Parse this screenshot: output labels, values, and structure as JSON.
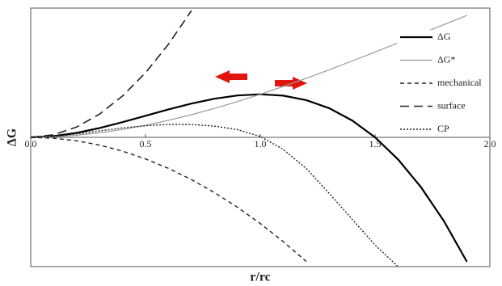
{
  "chart_data": {
    "type": "line",
    "xlabel": "r/rc",
    "ylabel": "ΔG",
    "x": [
      0,
      0.1,
      0.2,
      0.3,
      0.4,
      0.5,
      0.6,
      0.7,
      0.8,
      0.9,
      1.0,
      1.1,
      1.2,
      1.3,
      1.4,
      1.5,
      1.6,
      1.7,
      1.8,
      1.9,
      2.0
    ],
    "xlim": [
      0,
      2
    ],
    "ylim": [
      -3,
      3
    ],
    "xticks": [
      {
        "value": 0,
        "label": "0.0"
      },
      0.5,
      {
        "value": 1,
        "label": "1.0"
      },
      1.5,
      {
        "value": 2,
        "label": "2.0"
      }
    ],
    "legend": "top-right",
    "series": [
      {
        "name": "ΔG",
        "color": "#000000",
        "width": 2.2,
        "dash": "none",
        "values": [
          0,
          0.028,
          0.104,
          0.216,
          0.352,
          0.5,
          0.648,
          0.784,
          0.896,
          0.972,
          1,
          0.968,
          0.864,
          0.676,
          0.392,
          0,
          -0.512,
          -1.156,
          -1.944,
          -2.888,
          null
        ]
      },
      {
        "name": "ΔG*",
        "color": "#9a9a9a",
        "width": 1.2,
        "dash": "none",
        "values": [
          0,
          0.012,
          0.048,
          0.105,
          0.183,
          0.28,
          0.395,
          0.525,
          0.671,
          0.829,
          1,
          1.181,
          1.371,
          1.568,
          1.772,
          1.98,
          2.191,
          2.404,
          2.618,
          2.83,
          null
        ]
      },
      {
        "name": "mechanical",
        "color": "#222222",
        "width": 1.4,
        "dash": "5 4",
        "values": [
          0,
          -0.02,
          -0.08,
          -0.18,
          -0.32,
          -0.5,
          -0.72,
          -0.98,
          -1.28,
          -1.62,
          -2,
          -2.42,
          -2.88,
          null,
          null,
          null,
          null,
          null,
          null,
          null,
          null
        ]
      },
      {
        "name": "surface",
        "color": "#222222",
        "width": 1.6,
        "dash": "11 6",
        "values": [
          0,
          0.06,
          0.24,
          0.54,
          0.96,
          1.5,
          2.16,
          2.94,
          null,
          null,
          null,
          null,
          null,
          null,
          null,
          null,
          null,
          null,
          null,
          null,
          null
        ]
      },
      {
        "name": "CP",
        "color": "#222222",
        "width": 1.4,
        "dash": "2 2",
        "values": [
          0,
          0.02,
          0.08,
          0.15,
          0.22,
          0.27,
          0.3,
          0.3,
          0.26,
          0.18,
          0.02,
          -0.28,
          -0.72,
          -1.3,
          -1.9,
          -2.5,
          -3.0,
          null,
          null,
          null,
          null
        ]
      }
    ]
  }
}
